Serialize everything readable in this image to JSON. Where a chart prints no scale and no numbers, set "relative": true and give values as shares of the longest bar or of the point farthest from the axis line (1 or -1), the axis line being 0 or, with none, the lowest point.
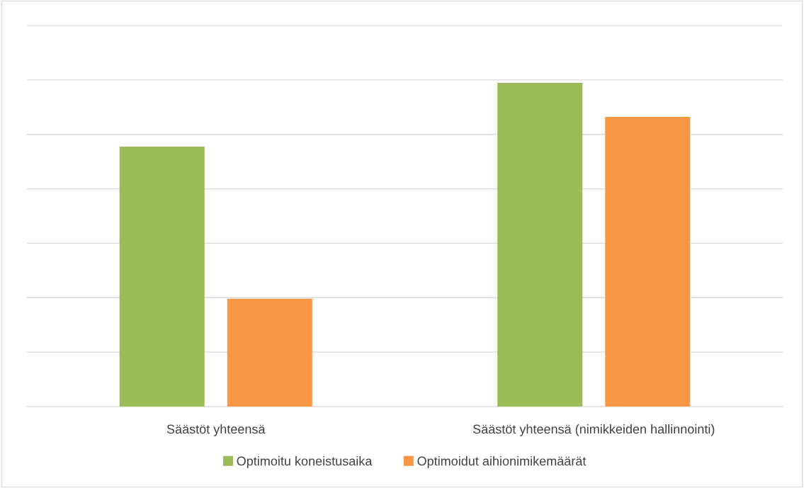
{
  "chart_data": {
    "type": "bar",
    "relative": true,
    "categories": [
      "Säästöt yhteensä",
      "Säästöt yhteensä (nimikkeiden hallinnointi)"
    ],
    "series": [
      {
        "name": "Optimoitu koneistusaika",
        "color": "#9bbb59",
        "values": [
          0.803,
          1
        ]
      },
      {
        "name": "Optimoidut aihionimikemäärät",
        "color": "#f79646",
        "values": [
          0.333,
          0.895
        ]
      }
    ],
    "grid": "y",
    "legend": "bottom"
  }
}
